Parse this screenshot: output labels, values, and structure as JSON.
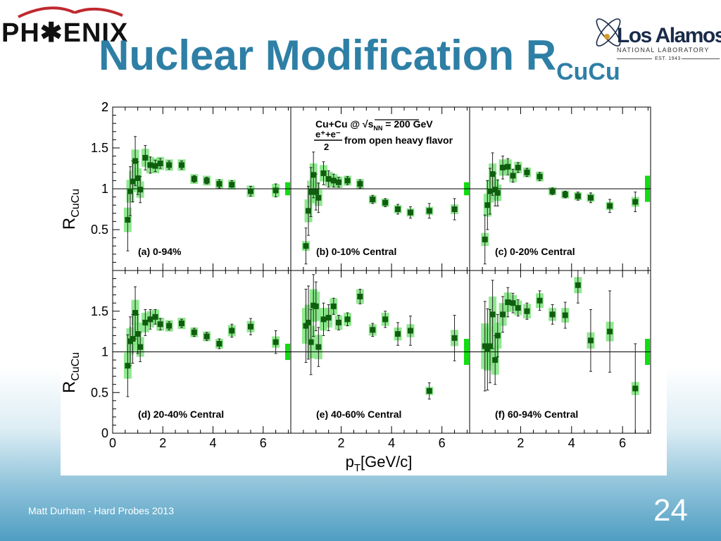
{
  "slide": {
    "title_main": "Nuclear Modification R",
    "title_sub": "CuCu",
    "footer": "Matt Durham - Hard Probes 2013",
    "page_number": "24"
  },
  "logos": {
    "phenix": "PH✱ENIX",
    "lanl_name": "Los Alamos",
    "lanl_sub": "NATIONAL LABORATORY",
    "lanl_est": "EST. 1943"
  },
  "colors": {
    "title": "#2e7fa6",
    "marker": "#0e5e0e",
    "sys_band": "#7ee47e",
    "norm_band": "#11dd11"
  },
  "chart_data": {
    "type": "scatter",
    "layout": "2x3 panels, shared axes",
    "xlabel_main": "p",
    "xlabel_sub": "T",
    "xlabel_unit": "[GeV/c]",
    "ylabel_main": "R",
    "ylabel_sub": "CuCu",
    "xlim": [
      0,
      7.1
    ],
    "ylim": [
      0,
      2
    ],
    "x_ticks": [
      "0",
      "2",
      "4",
      "6"
    ],
    "y_ticks": [
      "0",
      "0.5",
      "1",
      "1.5",
      "2"
    ],
    "reference_line": 1,
    "legend": {
      "system": "Cu+Cu @ √s",
      "snn_sub": "NN",
      "energy": " = 200 GeV",
      "numerator": "e⁺+e⁻",
      "denominator": "2",
      "source": "from open heavy flavor"
    },
    "panels": [
      {
        "label": "(a) 0-94%",
        "norm": 0.08,
        "points": [
          {
            "x": 0.6,
            "y": 0.62,
            "stat": 0.38,
            "sys": 0.15
          },
          {
            "x": 0.7,
            "y": 0.97,
            "stat": 0.3,
            "sys": 0.14
          },
          {
            "x": 0.8,
            "y": 1.09,
            "stat": 0.25,
            "sys": 0.13
          },
          {
            "x": 0.9,
            "y": 1.34,
            "stat": 0.3,
            "sys": 0.14
          },
          {
            "x": 1.0,
            "y": 1.13,
            "stat": 0.2,
            "sys": 0.12
          },
          {
            "x": 1.1,
            "y": 0.99,
            "stat": 0.16,
            "sys": 0.1
          },
          {
            "x": 1.3,
            "y": 1.38,
            "stat": 0.15,
            "sys": 0.11
          },
          {
            "x": 1.5,
            "y": 1.29,
            "stat": 0.1,
            "sys": 0.1
          },
          {
            "x": 1.7,
            "y": 1.28,
            "stat": 0.07,
            "sys": 0.09
          },
          {
            "x": 1.9,
            "y": 1.31,
            "stat": 0.06,
            "sys": 0.08
          },
          {
            "x": 2.25,
            "y": 1.29,
            "stat": 0.05,
            "sys": 0.07
          },
          {
            "x": 2.75,
            "y": 1.29,
            "stat": 0.05,
            "sys": 0.07
          },
          {
            "x": 3.25,
            "y": 1.12,
            "stat": 0.04,
            "sys": 0.06
          },
          {
            "x": 3.75,
            "y": 1.1,
            "stat": 0.04,
            "sys": 0.06
          },
          {
            "x": 4.25,
            "y": 1.06,
            "stat": 0.05,
            "sys": 0.06
          },
          {
            "x": 4.75,
            "y": 1.05,
            "stat": 0.05,
            "sys": 0.06
          },
          {
            "x": 5.5,
            "y": 0.97,
            "stat": 0.06,
            "sys": 0.07
          },
          {
            "x": 6.5,
            "y": 0.98,
            "stat": 0.08,
            "sys": 0.08
          }
        ]
      },
      {
        "label": "(b) 0-10% Central",
        "norm": 0.08,
        "points": [
          {
            "x": 0.6,
            "y": 0.3,
            "stat": 0.22,
            "sys": 0.06
          },
          {
            "x": 0.7,
            "y": 0.73,
            "stat": 0.3,
            "sys": 0.14
          },
          {
            "x": 0.8,
            "y": 0.96,
            "stat": 0.3,
            "sys": 0.14
          },
          {
            "x": 0.9,
            "y": 1.17,
            "stat": 0.28,
            "sys": 0.14
          },
          {
            "x": 1.0,
            "y": 0.96,
            "stat": 0.22,
            "sys": 0.12
          },
          {
            "x": 1.1,
            "y": 0.89,
            "stat": 0.18,
            "sys": 0.1
          },
          {
            "x": 1.3,
            "y": 1.19,
            "stat": 0.14,
            "sys": 0.1
          },
          {
            "x": 1.5,
            "y": 1.12,
            "stat": 0.1,
            "sys": 0.09
          },
          {
            "x": 1.7,
            "y": 1.1,
            "stat": 0.08,
            "sys": 0.08
          },
          {
            "x": 1.9,
            "y": 1.08,
            "stat": 0.06,
            "sys": 0.07
          },
          {
            "x": 2.25,
            "y": 1.1,
            "stat": 0.05,
            "sys": 0.06
          },
          {
            "x": 2.75,
            "y": 1.06,
            "stat": 0.05,
            "sys": 0.06
          },
          {
            "x": 3.25,
            "y": 0.87,
            "stat": 0.05,
            "sys": 0.05
          },
          {
            "x": 3.75,
            "y": 0.83,
            "stat": 0.05,
            "sys": 0.05
          },
          {
            "x": 4.25,
            "y": 0.75,
            "stat": 0.06,
            "sys": 0.05
          },
          {
            "x": 4.75,
            "y": 0.71,
            "stat": 0.07,
            "sys": 0.05
          },
          {
            "x": 5.5,
            "y": 0.73,
            "stat": 0.09,
            "sys": 0.05
          },
          {
            "x": 6.5,
            "y": 0.75,
            "stat": 0.13,
            "sys": 0.06
          }
        ]
      },
      {
        "label": "(c) 0-20% Central",
        "norm": 0.16,
        "points": [
          {
            "x": 0.6,
            "y": 0.38,
            "stat": 0.3,
            "sys": 0.08
          },
          {
            "x": 0.7,
            "y": 0.8,
            "stat": 0.3,
            "sys": 0.14
          },
          {
            "x": 0.8,
            "y": 0.97,
            "stat": 0.28,
            "sys": 0.14
          },
          {
            "x": 0.9,
            "y": 1.18,
            "stat": 0.26,
            "sys": 0.13
          },
          {
            "x": 1.0,
            "y": 0.99,
            "stat": 0.2,
            "sys": 0.12
          },
          {
            "x": 1.1,
            "y": 0.95,
            "stat": 0.16,
            "sys": 0.1
          },
          {
            "x": 1.3,
            "y": 1.26,
            "stat": 0.14,
            "sys": 0.1
          },
          {
            "x": 1.5,
            "y": 1.27,
            "stat": 0.1,
            "sys": 0.09
          },
          {
            "x": 1.7,
            "y": 1.16,
            "stat": 0.08,
            "sys": 0.08
          },
          {
            "x": 1.9,
            "y": 1.26,
            "stat": 0.06,
            "sys": 0.07
          },
          {
            "x": 2.25,
            "y": 1.2,
            "stat": 0.05,
            "sys": 0.06
          },
          {
            "x": 2.75,
            "y": 1.15,
            "stat": 0.05,
            "sys": 0.06
          },
          {
            "x": 3.25,
            "y": 0.97,
            "stat": 0.04,
            "sys": 0.05
          },
          {
            "x": 3.75,
            "y": 0.93,
            "stat": 0.04,
            "sys": 0.05
          },
          {
            "x": 4.25,
            "y": 0.91,
            "stat": 0.05,
            "sys": 0.05
          },
          {
            "x": 4.75,
            "y": 0.89,
            "stat": 0.06,
            "sys": 0.05
          },
          {
            "x": 5.5,
            "y": 0.79,
            "stat": 0.08,
            "sys": 0.05
          },
          {
            "x": 6.5,
            "y": 0.84,
            "stat": 0.12,
            "sys": 0.06
          }
        ]
      },
      {
        "label": "(d) 20-40% Central",
        "norm": 0.1,
        "points": [
          {
            "x": 0.6,
            "y": 0.83,
            "stat": 0.38,
            "sys": 0.16
          },
          {
            "x": 0.7,
            "y": 1.13,
            "stat": 0.3,
            "sys": 0.16
          },
          {
            "x": 0.8,
            "y": 1.16,
            "stat": 0.3,
            "sys": 0.15
          },
          {
            "x": 0.9,
            "y": 1.48,
            "stat": 0.32,
            "sys": 0.16
          },
          {
            "x": 1.0,
            "y": 1.22,
            "stat": 0.24,
            "sys": 0.14
          },
          {
            "x": 1.1,
            "y": 1.06,
            "stat": 0.18,
            "sys": 0.12
          },
          {
            "x": 1.3,
            "y": 1.36,
            "stat": 0.16,
            "sys": 0.12
          },
          {
            "x": 1.5,
            "y": 1.4,
            "stat": 0.12,
            "sys": 0.1
          },
          {
            "x": 1.7,
            "y": 1.43,
            "stat": 0.09,
            "sys": 0.09
          },
          {
            "x": 1.9,
            "y": 1.34,
            "stat": 0.07,
            "sys": 0.08
          },
          {
            "x": 2.25,
            "y": 1.32,
            "stat": 0.05,
            "sys": 0.07
          },
          {
            "x": 2.75,
            "y": 1.35,
            "stat": 0.05,
            "sys": 0.07
          },
          {
            "x": 3.25,
            "y": 1.24,
            "stat": 0.05,
            "sys": 0.06
          },
          {
            "x": 3.75,
            "y": 1.19,
            "stat": 0.05,
            "sys": 0.06
          },
          {
            "x": 4.25,
            "y": 1.1,
            "stat": 0.06,
            "sys": 0.06
          },
          {
            "x": 4.75,
            "y": 1.26,
            "stat": 0.08,
            "sys": 0.07
          },
          {
            "x": 5.5,
            "y": 1.31,
            "stat": 0.1,
            "sys": 0.07
          },
          {
            "x": 6.5,
            "y": 1.12,
            "stat": 0.14,
            "sys": 0.07
          }
        ]
      },
      {
        "label": "(e) 40-60% Central",
        "norm": 0.16,
        "points": [
          {
            "x": 0.6,
            "y": 1.32,
            "stat": 0.45,
            "sys": 0.22
          },
          {
            "x": 0.7,
            "y": 1.36,
            "stat": 0.45,
            "sys": 0.22
          },
          {
            "x": 0.8,
            "y": 1.12,
            "stat": 0.4,
            "sys": 0.2
          },
          {
            "x": 0.9,
            "y": 1.57,
            "stat": 0.38,
            "sys": 0.2
          },
          {
            "x": 1.0,
            "y": 1.56,
            "stat": 0.3,
            "sys": 0.18
          },
          {
            "x": 1.1,
            "y": 1.06,
            "stat": 0.24,
            "sys": 0.15
          },
          {
            "x": 1.3,
            "y": 1.4,
            "stat": 0.2,
            "sys": 0.14
          },
          {
            "x": 1.5,
            "y": 1.42,
            "stat": 0.16,
            "sys": 0.12
          },
          {
            "x": 1.7,
            "y": 1.56,
            "stat": 0.1,
            "sys": 0.1
          },
          {
            "x": 1.9,
            "y": 1.36,
            "stat": 0.09,
            "sys": 0.09
          },
          {
            "x": 2.25,
            "y": 1.4,
            "stat": 0.08,
            "sys": 0.08
          },
          {
            "x": 2.75,
            "y": 1.68,
            "stat": 0.09,
            "sys": 0.09
          },
          {
            "x": 3.25,
            "y": 1.27,
            "stat": 0.08,
            "sys": 0.07
          },
          {
            "x": 3.75,
            "y": 1.4,
            "stat": 0.1,
            "sys": 0.08
          },
          {
            "x": 4.25,
            "y": 1.22,
            "stat": 0.14,
            "sys": 0.08
          },
          {
            "x": 4.75,
            "y": 1.26,
            "stat": 0.18,
            "sys": 0.08
          },
          {
            "x": 5.5,
            "y": 0.52,
            "stat": 0.1,
            "sys": 0.05
          },
          {
            "x": 6.5,
            "y": 1.17,
            "stat": 0.28,
            "sys": 0.1
          }
        ]
      },
      {
        "label": "(f) 60-94% Central",
        "norm": 0.16,
        "points": [
          {
            "x": 0.6,
            "y": 1.07,
            "stat": 0.55,
            "sys": 0.28
          },
          {
            "x": 0.7,
            "y": 1.03,
            "stat": 0.5,
            "sys": 0.26
          },
          {
            "x": 0.8,
            "y": 1.07,
            "stat": 0.45,
            "sys": 0.24
          },
          {
            "x": 0.9,
            "y": 1.46,
            "stat": 0.42,
            "sys": 0.22
          },
          {
            "x": 1.0,
            "y": 0.9,
            "stat": 0.3,
            "sys": 0.18
          },
          {
            "x": 1.1,
            "y": 1.2,
            "stat": 0.26,
            "sys": 0.16
          },
          {
            "x": 1.3,
            "y": 1.46,
            "stat": 0.22,
            "sys": 0.14
          },
          {
            "x": 1.5,
            "y": 1.61,
            "stat": 0.18,
            "sys": 0.12
          },
          {
            "x": 1.7,
            "y": 1.6,
            "stat": 0.12,
            "sys": 0.1
          },
          {
            "x": 1.9,
            "y": 1.54,
            "stat": 0.1,
            "sys": 0.09
          },
          {
            "x": 2.25,
            "y": 1.5,
            "stat": 0.1,
            "sys": 0.09
          },
          {
            "x": 2.75,
            "y": 1.63,
            "stat": 0.12,
            "sys": 0.09
          },
          {
            "x": 3.25,
            "y": 1.46,
            "stat": 0.12,
            "sys": 0.08
          },
          {
            "x": 3.75,
            "y": 1.45,
            "stat": 0.16,
            "sys": 0.09
          },
          {
            "x": 4.25,
            "y": 1.82,
            "stat": 0.22,
            "sys": 0.1
          },
          {
            "x": 4.75,
            "y": 1.14,
            "stat": 0.38,
            "sys": 0.1
          },
          {
            "x": 5.5,
            "y": 1.25,
            "stat": 0.5,
            "sys": 0.12
          },
          {
            "x": 6.5,
            "y": 0.55,
            "stat": 0.55,
            "sys": 0.08
          }
        ]
      }
    ]
  }
}
